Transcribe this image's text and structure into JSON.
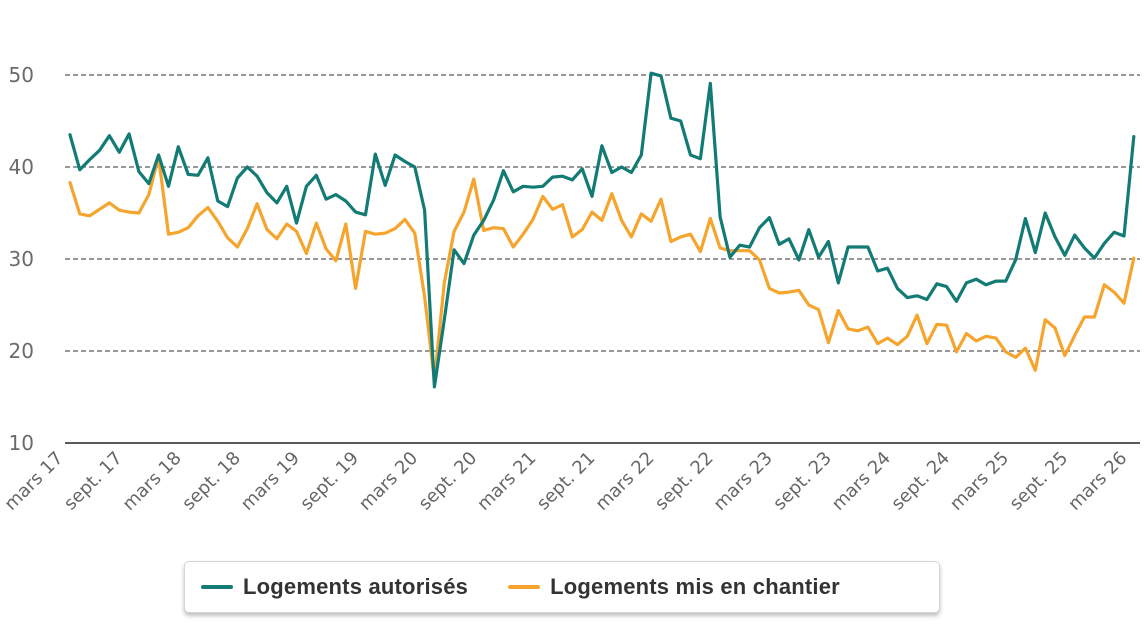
{
  "chart_data": {
    "type": "line",
    "title": "",
    "xlabel": "",
    "ylabel": "",
    "ylim": [
      10,
      50
    ],
    "yticks": [
      10,
      20,
      30,
      40,
      50
    ],
    "grid": true,
    "legend_position": "bottom-center",
    "x_start": "mars 17",
    "x_end": "mars 26",
    "x_frequency": "monthly",
    "x_tick_every": 6,
    "x_tick_labels": [
      "mars 17",
      "sept. 17",
      "mars 18",
      "sept. 18",
      "mars 19",
      "sept. 19",
      "mars 20",
      "sept. 20",
      "mars 21",
      "sept. 21",
      "mars 22",
      "sept. 22",
      "mars 23",
      "sept. 23",
      "mars 24",
      "sept. 24",
      "mars 25",
      "sept. 25",
      "mars 26"
    ],
    "series": [
      {
        "name": "Logements autorisés",
        "color": "#137b75",
        "values": [
          43.5,
          39.7,
          40.8,
          41.8,
          43.4,
          41.6,
          43.6,
          39.5,
          38.2,
          41.3,
          37.9,
          42.2,
          39.2,
          39.1,
          41.0,
          36.3,
          35.7,
          38.8,
          40.0,
          39.0,
          37.2,
          36.1,
          37.9,
          33.9,
          37.9,
          39.1,
          36.5,
          37.0,
          36.3,
          35.1,
          34.8,
          41.4,
          38.0,
          41.3,
          40.6,
          40.0,
          35.3,
          16.1,
          23.4,
          31.0,
          29.5,
          32.6,
          34.2,
          36.4,
          39.6,
          37.3,
          37.9,
          37.8,
          37.9,
          38.9,
          39.0,
          38.6,
          39.8,
          36.8,
          42.3,
          39.4,
          40.0,
          39.4,
          41.3,
          50.2,
          49.9,
          45.3,
          45.0,
          41.3,
          40.9,
          49.1,
          34.6,
          30.2,
          31.5,
          31.3,
          33.4,
          34.5,
          31.6,
          32.2,
          29.9,
          33.2,
          30.2,
          31.9,
          27.4,
          31.3,
          31.3,
          31.3,
          28.7,
          29.0,
          26.8,
          25.8,
          26.0,
          25.6,
          27.3,
          27.0,
          25.4,
          27.4,
          27.8,
          27.2,
          27.6,
          27.6,
          29.9,
          34.4,
          30.7,
          35.0,
          32.4,
          30.4,
          32.6,
          31.2,
          30.1,
          31.7,
          32.9,
          32.5,
          43.3
        ]
      },
      {
        "name": "Logements mis en chantier",
        "color": "#f5a52d",
        "values": [
          38.3,
          34.9,
          34.7,
          35.4,
          36.1,
          35.3,
          35.1,
          35.0,
          37.0,
          41.1,
          32.7,
          32.9,
          33.4,
          34.7,
          35.6,
          34.1,
          32.3,
          31.3,
          33.3,
          36.0,
          33.2,
          32.2,
          33.8,
          33.0,
          30.6,
          33.9,
          31.1,
          29.8,
          33.8,
          26.8,
          33.0,
          32.7,
          32.8,
          33.3,
          34.3,
          32.8,
          25.9,
          16.8,
          27.4,
          33.0,
          35.1,
          38.7,
          33.1,
          33.4,
          33.3,
          31.3,
          32.7,
          34.3,
          36.8,
          35.4,
          35.9,
          32.4,
          33.2,
          35.1,
          34.2,
          37.1,
          34.2,
          32.4,
          34.9,
          34.1,
          36.5,
          31.9,
          32.4,
          32.7,
          30.8,
          34.4,
          31.2,
          30.9,
          30.9,
          30.9,
          29.9,
          26.8,
          26.3,
          26.4,
          26.6,
          25.0,
          24.5,
          20.9,
          24.4,
          22.4,
          22.2,
          22.6,
          20.8,
          21.4,
          20.7,
          21.6,
          23.9,
          20.8,
          22.9,
          22.8,
          19.9,
          21.9,
          21.1,
          21.6,
          21.4,
          19.9,
          19.3,
          20.3,
          17.9,
          23.4,
          22.5,
          19.5,
          21.7,
          23.7,
          23.7,
          27.2,
          26.4,
          25.2,
          30.1
        ]
      }
    ]
  },
  "legend": {
    "items": [
      {
        "label": "Logements autorisés",
        "color": "#137b75"
      },
      {
        "label": "Logements mis en chantier",
        "color": "#f5a52d"
      }
    ]
  }
}
